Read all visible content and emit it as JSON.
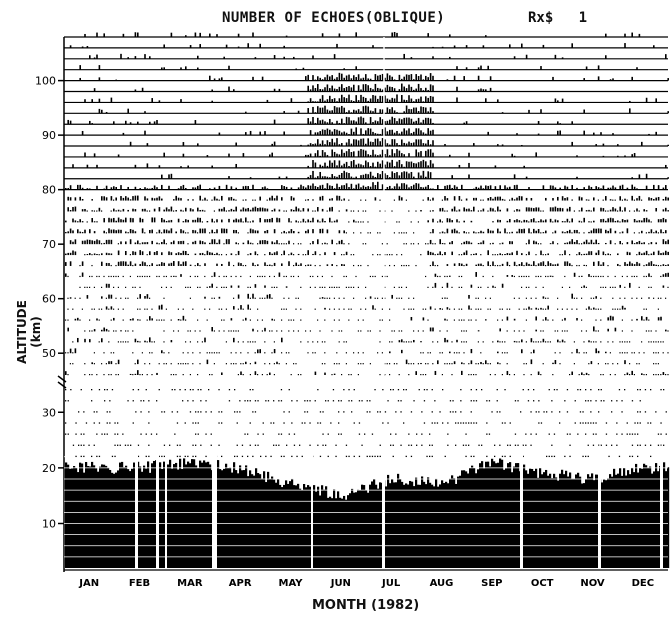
{
  "chart_data": {
    "type": "heatmap",
    "title": "NUMBER OF ECHOES(OBLIQUE)",
    "receiver_label": "Rx$",
    "receiver_number": "1",
    "xlabel": "MONTH (1982)",
    "ylabel": "ALTITUDE (km)",
    "x_categories": [
      "JAN",
      "FEB",
      "MAR",
      "APR",
      "MAY",
      "JUN",
      "JUL",
      "AUG",
      "SEP",
      "OCT",
      "NOV",
      "DEC"
    ],
    "y_ticks_upper": [
      50,
      60,
      70,
      80,
      90,
      100
    ],
    "y_ticks_lower": [
      10,
      20,
      30
    ],
    "y_axis_broken": true,
    "upper_range_km": [
      46,
      108
    ],
    "lower_range_km": [
      2,
      34
    ],
    "lower_echo_top_km_by_month": [
      20,
      20,
      21,
      20,
      17,
      15,
      18,
      17,
      21,
      19,
      18,
      20
    ],
    "upper_echo_summer_band_km": [
      80,
      101
    ],
    "color": "#000000"
  }
}
